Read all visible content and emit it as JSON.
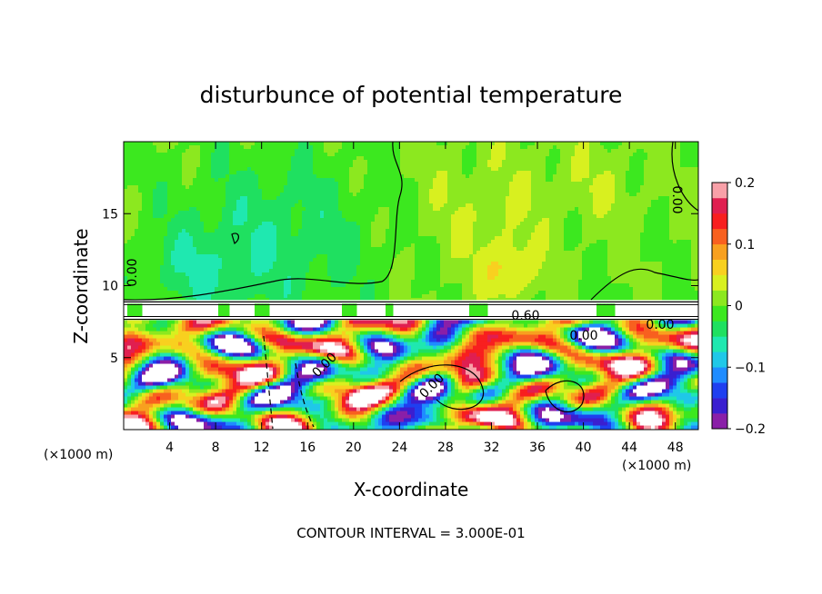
{
  "chart_data": {
    "type": "heatmap",
    "title": "disturbunce of potential temperature",
    "xlabel": "X-coordinate",
    "ylabel": "Z-coordinate",
    "x_unit": "(×1000 m)",
    "z_unit": "(×1000 m)",
    "xlim": [
      0,
      50
    ],
    "ylim": [
      0,
      20
    ],
    "x_ticks": [
      4,
      8,
      12,
      16,
      20,
      24,
      28,
      32,
      36,
      40,
      44,
      48
    ],
    "y_ticks": [
      5,
      10,
      15
    ],
    "colorbar": {
      "ticks": [
        0.2,
        0.1,
        0,
        -0.1,
        -0.2
      ],
      "tick_labels": [
        "0.2",
        "0.1",
        "0",
        "−0.1",
        "−0.2"
      ],
      "min": -0.2,
      "max": 0.2,
      "colors": [
        "#8a1fa8",
        "#3a1fd0",
        "#1f3ff0",
        "#1f8cff",
        "#1fc8e8",
        "#1fe8b0",
        "#1fe060",
        "#3ce81f",
        "#8ce81f",
        "#d8f01f",
        "#f8d01f",
        "#f8a01f",
        "#f8601f",
        "#f81f1f",
        "#e01f50",
        "#f8a0a8"
      ]
    },
    "contour_labels": [
      "0.00",
      "0.00",
      "0.00",
      "0.00",
      "0.60",
      "0.00",
      "0.00"
    ],
    "contour_note": "CONTOUR INTERVAL = 3.000E-01"
  }
}
